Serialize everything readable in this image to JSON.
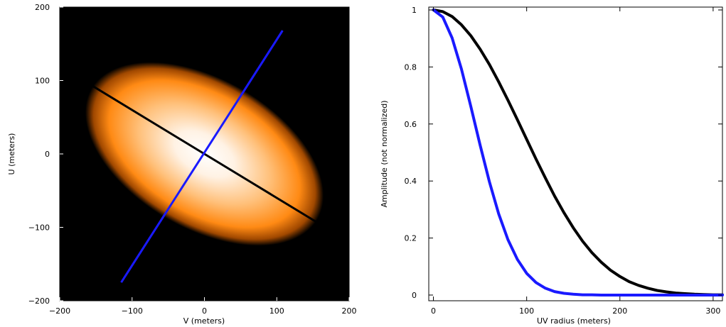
{
  "chart_data": [
    {
      "type": "heatmap",
      "xlabel": "V (meters)",
      "ylabel": "U (meters)",
      "xlim": [
        -200,
        200
      ],
      "ylim": [
        -200,
        200
      ],
      "xticks": [
        -200,
        -100,
        0,
        100,
        200
      ],
      "yticks": [
        -200,
        -100,
        0,
        100,
        200
      ],
      "xtick_labels": [
        "−200",
        "−100",
        "0",
        "100",
        "200"
      ],
      "ytick_labels": [
        "−200",
        "−100",
        "0",
        "100",
        "200"
      ],
      "background_color": "#000000",
      "gaussian": {
        "center": [
          0,
          0
        ],
        "major_axis_angle_deg": -30,
        "major_sigma": 95,
        "minor_sigma": 45,
        "colormap": [
          "#000000",
          "#ff7a00",
          "#ffb060",
          "#ffffff"
        ]
      },
      "lines": [
        {
          "color": "#000000",
          "x": [
            -167,
            167
          ],
          "y": [
            100,
            -100
          ]
        },
        {
          "color": "#1a1aff",
          "x": [
            -115,
            108
          ],
          "y": [
            -175,
            168
          ]
        }
      ]
    },
    {
      "type": "line",
      "xlabel": "UV radius (meters)",
      "ylabel": "Amplitude (not normalized)",
      "xlim": [
        -5,
        310
      ],
      "ylim": [
        -0.02,
        1.01
      ],
      "xticks": [
        0,
        100,
        200,
        300
      ],
      "yticks": [
        0,
        0.2,
        0.4,
        0.6,
        0.8,
        1
      ],
      "xtick_labels": [
        "0",
        "100",
        "200",
        "300"
      ],
      "ytick_labels": [
        "0",
        "0.2",
        "0.4",
        "0.6",
        "0.8",
        "1"
      ],
      "series": [
        {
          "color": "#000000",
          "x": [
            0,
            10,
            20,
            30,
            40,
            50,
            60,
            70,
            80,
            90,
            100,
            110,
            120,
            130,
            140,
            150,
            160,
            170,
            180,
            190,
            200,
            210,
            220,
            230,
            240,
            250,
            260,
            270,
            280,
            290,
            300,
            310
          ],
          "y": [
            1.0,
            0.994,
            0.977,
            0.948,
            0.91,
            0.863,
            0.809,
            0.748,
            0.683,
            0.615,
            0.546,
            0.477,
            0.411,
            0.347,
            0.289,
            0.236,
            0.189,
            0.149,
            0.115,
            0.087,
            0.065,
            0.047,
            0.034,
            0.024,
            0.016,
            0.011,
            0.007,
            0.005,
            0.003,
            0.002,
            0.001,
            0.001
          ]
        },
        {
          "color": "#1a1aff",
          "x": [
            0,
            10,
            20,
            30,
            40,
            50,
            60,
            70,
            80,
            90,
            100,
            110,
            120,
            130,
            140,
            150,
            160,
            170,
            180,
            200,
            250,
            300,
            310
          ],
          "y": [
            1.0,
            0.975,
            0.902,
            0.793,
            0.663,
            0.527,
            0.398,
            0.285,
            0.194,
            0.125,
            0.076,
            0.044,
            0.024,
            0.012,
            0.006,
            0.003,
            0.001,
            0.001,
            0.0,
            0.0,
            0.0,
            0.0,
            0.0
          ]
        }
      ]
    }
  ]
}
